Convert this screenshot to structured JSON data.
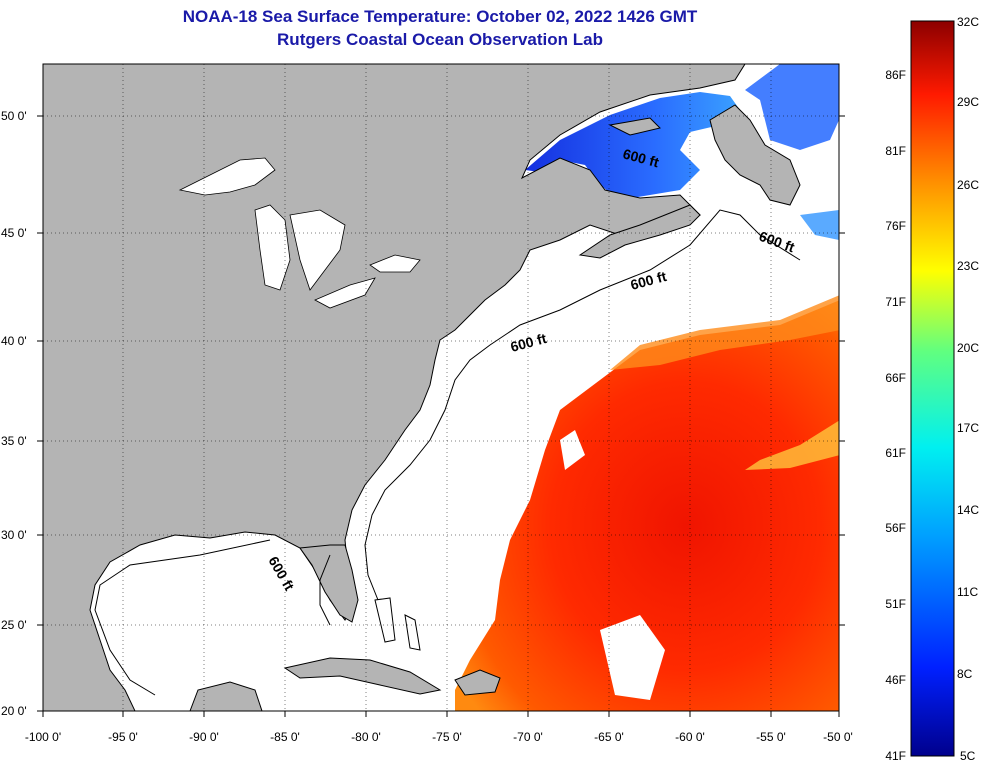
{
  "title": {
    "line1": "NOAA-18 Sea Surface Temperature:  October 02, 2022 1426 GMT",
    "line2": "Rutgers Coastal Ocean Observation Lab"
  },
  "map": {
    "lon_ticks": [
      "-100 0'",
      "-95 0'",
      "-90 0'",
      "-85 0'",
      "-80 0'",
      "-75 0'",
      "-70 0'",
      "-65 0'",
      "-60 0'",
      "-55 0'",
      "-50 0'"
    ],
    "lat_ticks": [
      "50 0'",
      "45 0'",
      "40 0'",
      "35 0'",
      "30 0'",
      "25 0'",
      "20 0'"
    ],
    "contour_labels": [
      "600 ft",
      "600 ft",
      "600 ft",
      "600 ft",
      "600 ft"
    ],
    "colors": {
      "land": "#b4b4b4",
      "water_no_data": "#ffffff",
      "warm": "#ff2a00",
      "cool": "#2a55ff"
    }
  },
  "colorbar": {
    "celsius_labels": [
      "32C",
      "29C",
      "26C",
      "23C",
      "20C",
      "17C",
      "14C",
      "11C",
      "8C",
      "5C"
    ],
    "fahrenheit_labels": [
      "86F",
      "81F",
      "76F",
      "71F",
      "66F",
      "61F",
      "56F",
      "51F",
      "46F",
      "41F"
    ]
  }
}
